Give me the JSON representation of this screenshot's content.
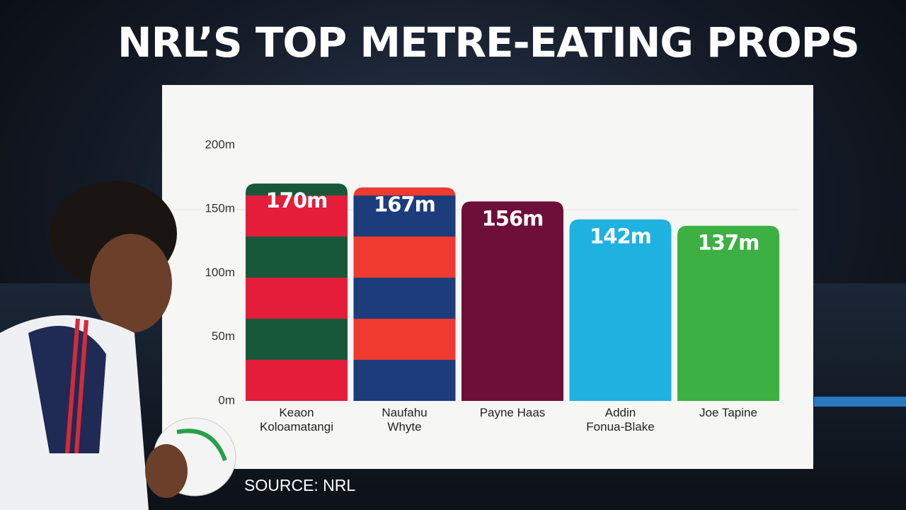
{
  "chart_data": {
    "type": "bar",
    "title": "NRL’S TOP METRE-EATING PROPS",
    "categories": [
      "Keaon\nKoloamatangi",
      "Naufahu\nWhyte",
      "Payne Haas",
      "Addin\nFonua-Blake",
      "Joe Tapine"
    ],
    "values": [
      170,
      167,
      156,
      142,
      137
    ],
    "value_labels": [
      "170m",
      "167m",
      "156m",
      "142m",
      "137m"
    ],
    "colors": [
      [
        "#17583a",
        "#e31d3a"
      ],
      [
        "#ee3a2f",
        "#1d3c7c"
      ],
      [
        "#6e0f3a"
      ],
      [
        "#1fb1e0"
      ],
      [
        "#3cb043"
      ]
    ],
    "ylim": [
      0,
      200
    ],
    "yticks": [
      {
        "value": 0,
        "label": "0m"
      },
      {
        "value": 50,
        "label": "50m"
      },
      {
        "value": 100,
        "label": "100m"
      },
      {
        "value": 150,
        "label": "150m"
      },
      {
        "value": 200,
        "label": "200m"
      }
    ],
    "grid": false,
    "source": "SOURCE: NRL"
  }
}
